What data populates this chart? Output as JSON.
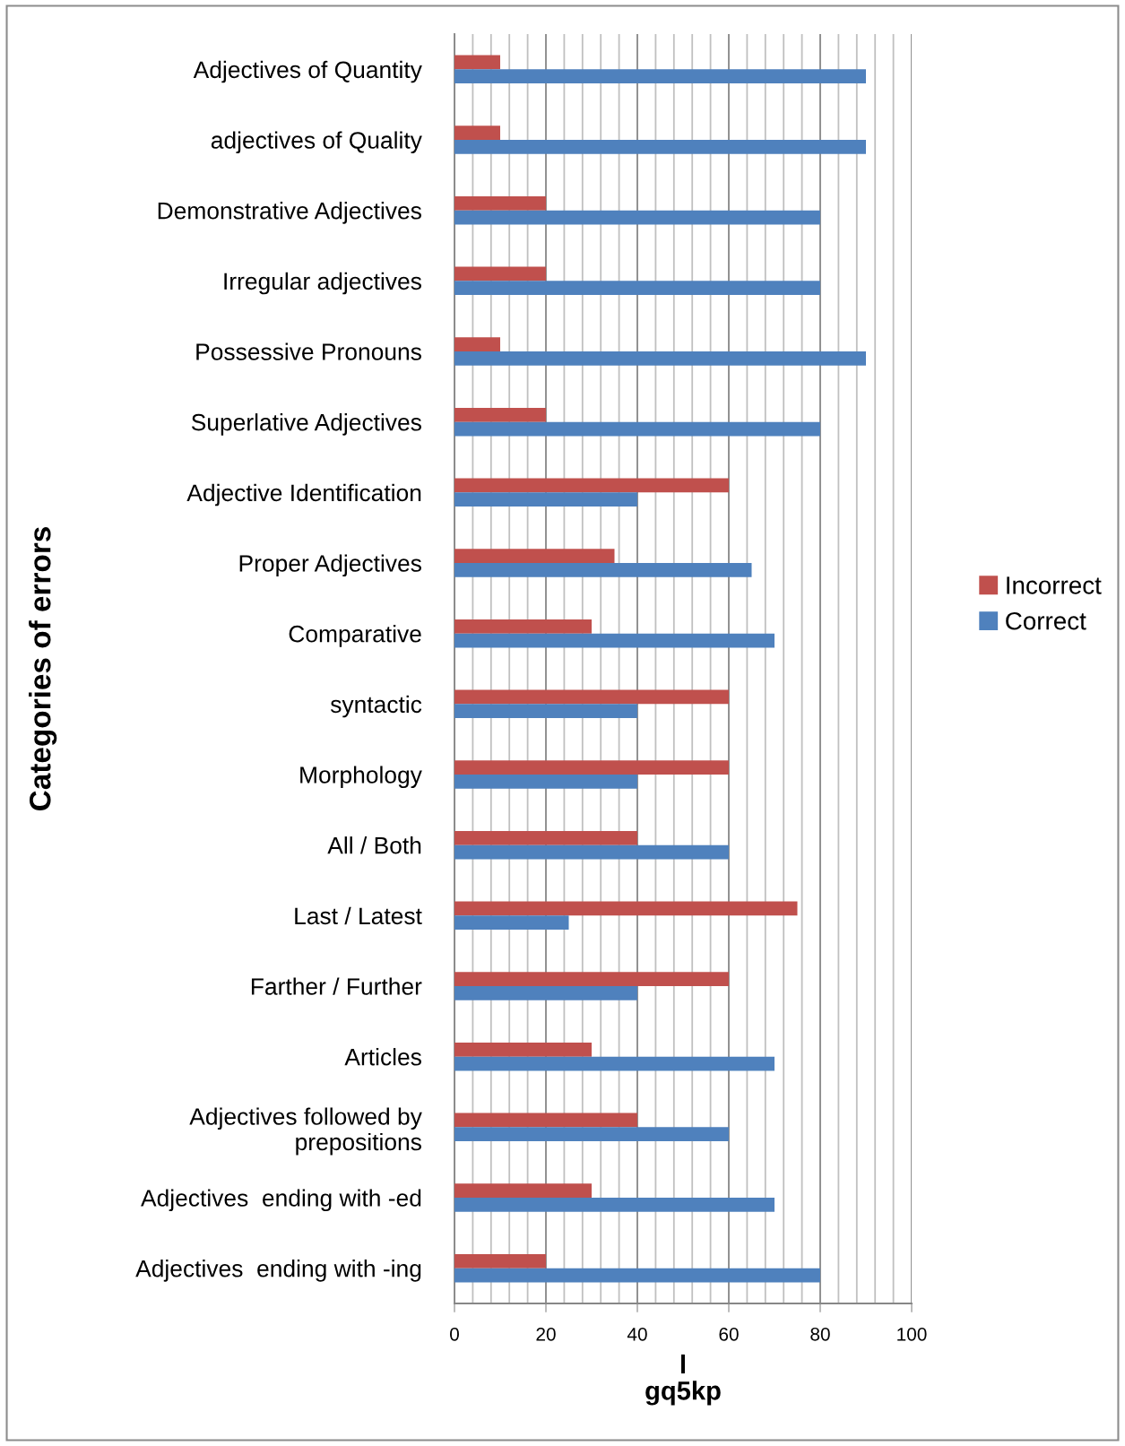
{
  "chart_data": {
    "type": "bar",
    "orientation": "horizontal",
    "xlabel": "l\ngq5kp",
    "ylabel": "Categories of errors",
    "categories": [
      "Adjectives of Quantity",
      "adjectives of Quality",
      "Demonstrative Adjectives",
      "Irregular adjectives",
      "Possessive Pronouns",
      "Superlative Adjectives",
      "Adjective Identification",
      "Proper Adjectives",
      "Comparative",
      "syntactic",
      "Morphology",
      "All / Both",
      "Last / Latest",
      "Farther / Further",
      "Articles",
      "Adjectives followed by\nprepositions",
      "Adjectives  ending with -ed",
      "Adjectives  ending with -ing"
    ],
    "series": [
      {
        "name": "Incorrect",
        "color": "#c0504d",
        "values": [
          10,
          10,
          20,
          20,
          10,
          20,
          60,
          35,
          30,
          60,
          60,
          40,
          75,
          60,
          30,
          40,
          30,
          20
        ]
      },
      {
        "name": "Correct",
        "color": "#4f81bd",
        "values": [
          90,
          90,
          80,
          80,
          90,
          80,
          40,
          65,
          70,
          40,
          40,
          60,
          25,
          40,
          70,
          60,
          70,
          80
        ]
      }
    ],
    "xlim": [
      0,
      100
    ],
    "xticks": [
      0,
      {
        "value": 4,
        "label": null
      },
      {
        "value": 8,
        "label": null
      },
      {
        "value": 12,
        "label": null
      },
      {
        "value": 16,
        "label": null
      },
      20,
      {
        "value": 24,
        "label": null
      },
      {
        "value": 28,
        "label": null
      },
      {
        "value": 32,
        "label": null
      },
      {
        "value": 36,
        "label": null
      },
      40,
      {
        "value": 44,
        "label": null
      },
      {
        "value": 48,
        "label": null
      },
      {
        "value": 52,
        "label": null
      },
      {
        "value": 56,
        "label": null
      },
      60,
      {
        "value": 64,
        "label": null
      },
      {
        "value": 68,
        "label": null
      },
      {
        "value": 72,
        "label": null
      },
      {
        "value": 76,
        "label": null
      },
      80,
      {
        "value": 84,
        "label": null
      },
      {
        "value": 88,
        "label": null
      },
      {
        "value": 92,
        "label": null
      },
      {
        "value": 96,
        "label": null
      },
      100
    ],
    "grid": "x",
    "legend": "right"
  }
}
